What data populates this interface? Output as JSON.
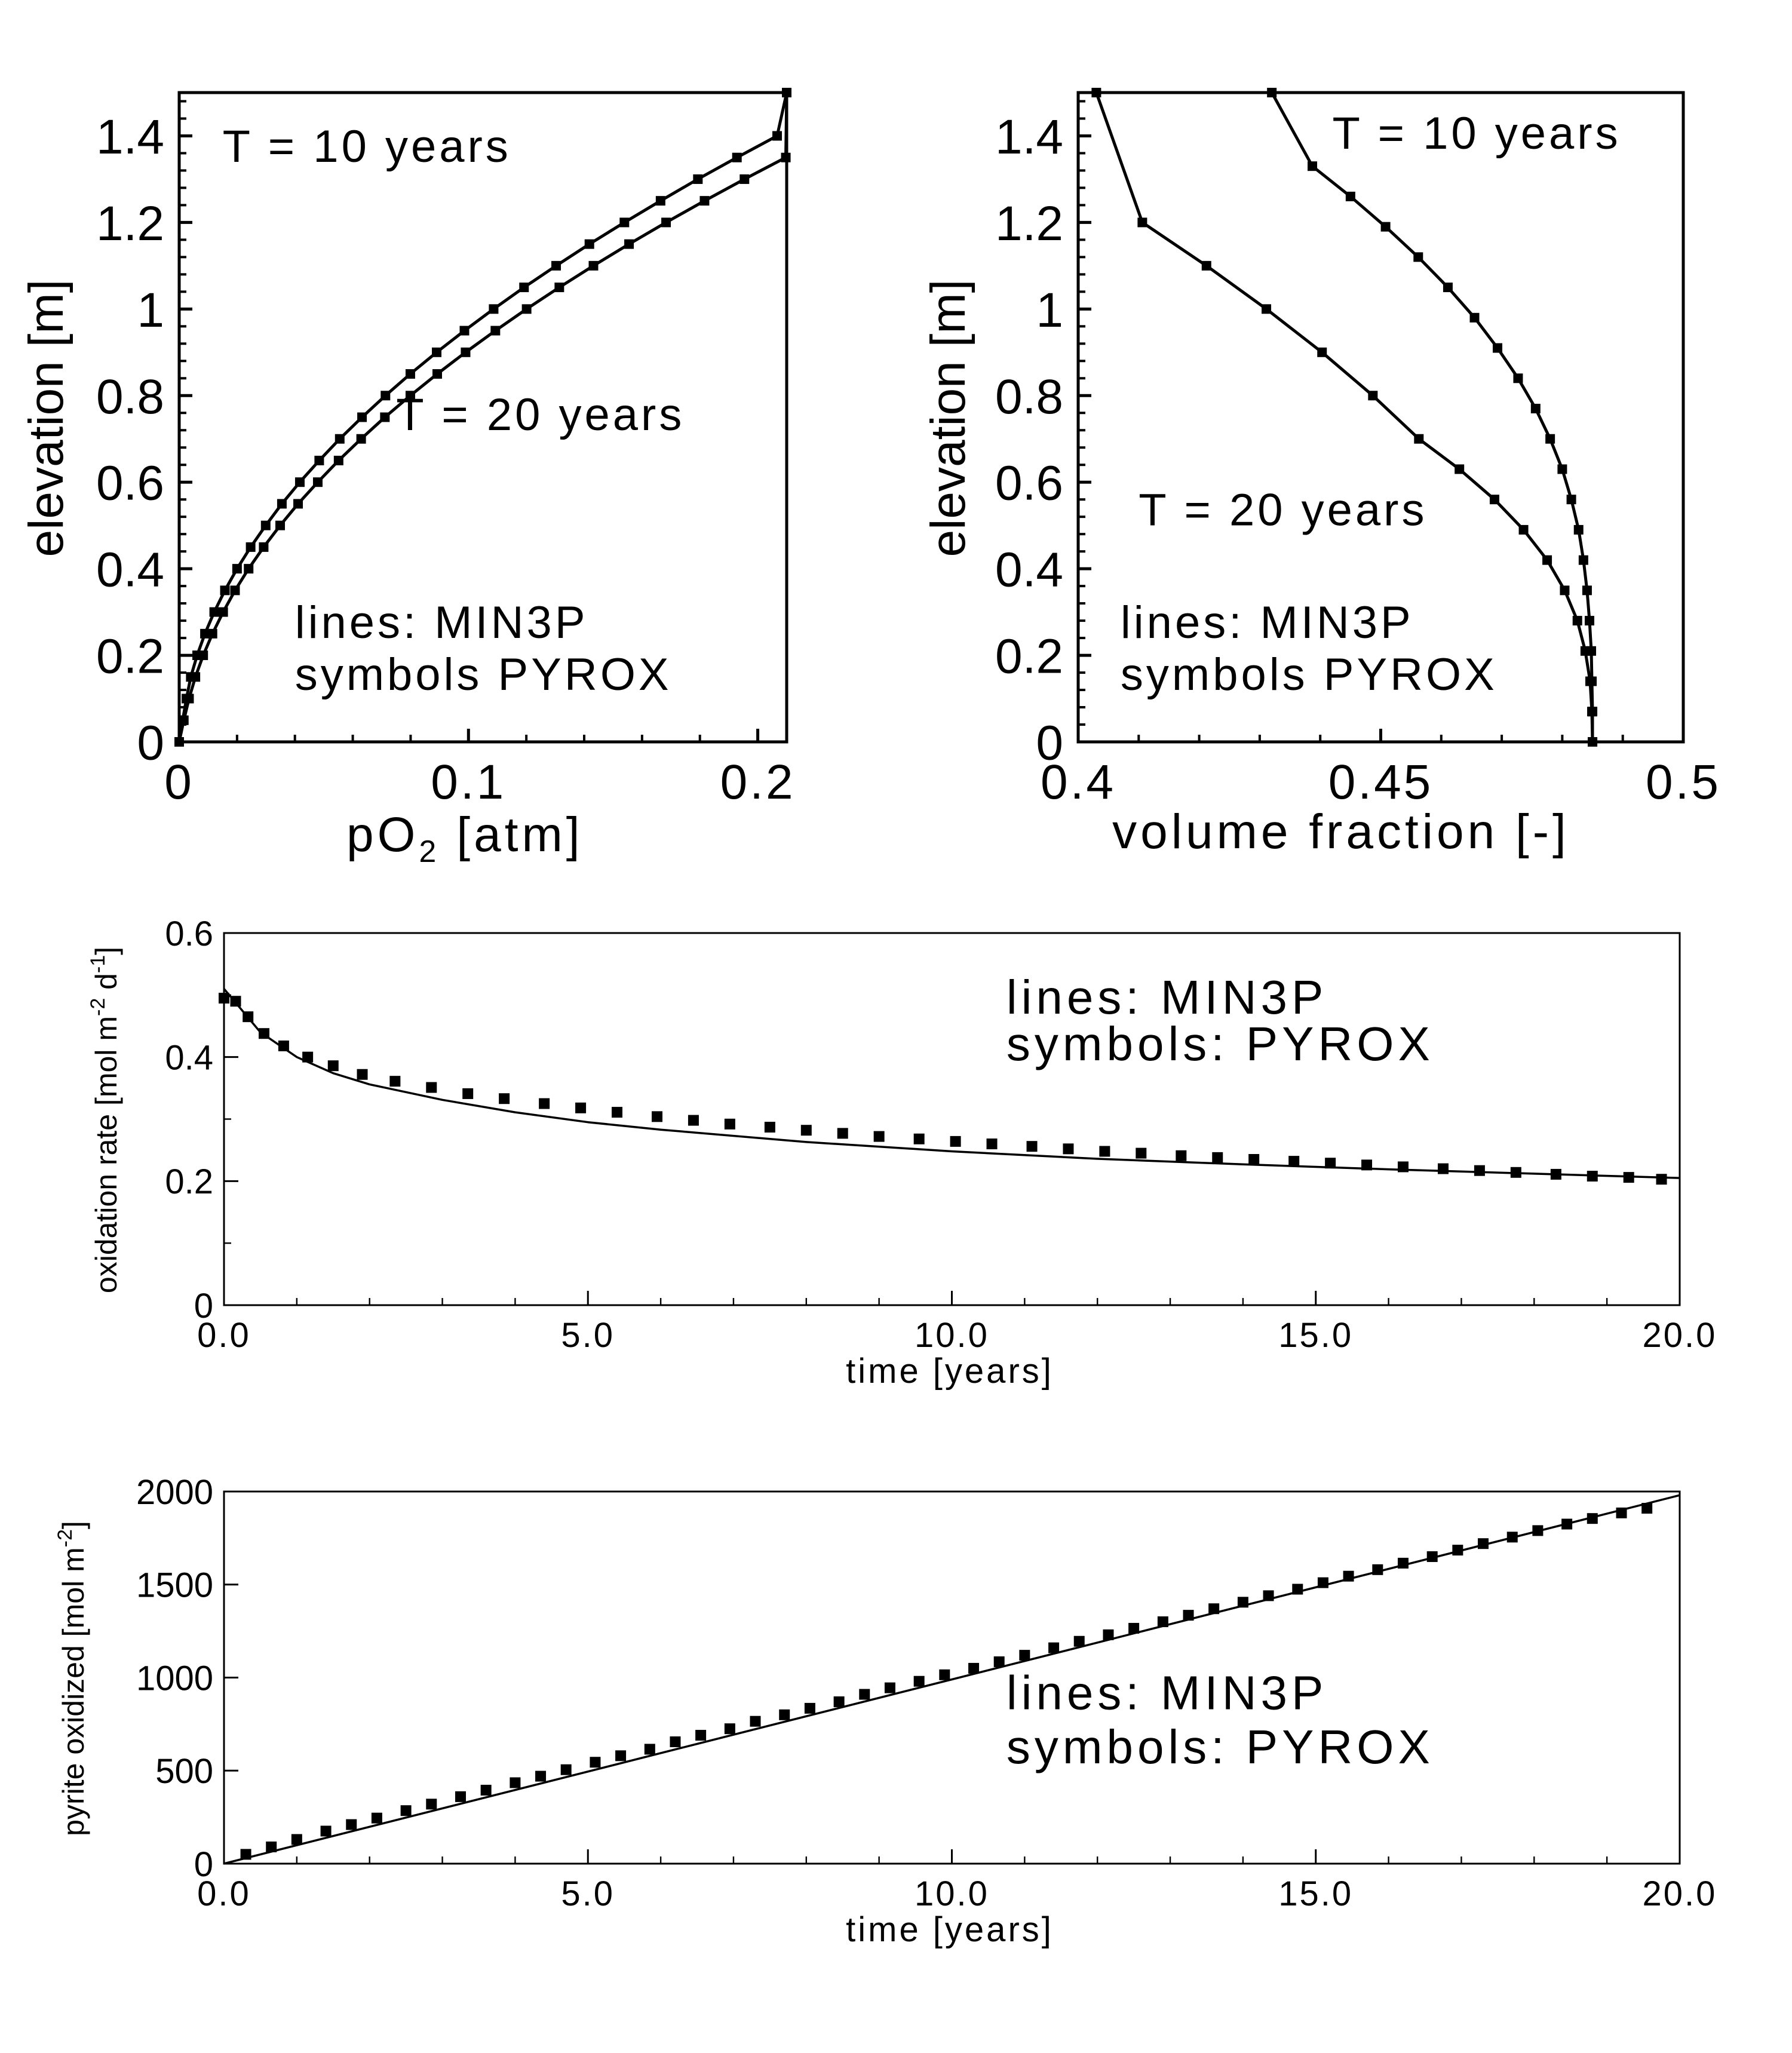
{
  "colors": {
    "background": "#ffffff",
    "ink": "#000000"
  },
  "chart_data": [
    {
      "type": "scatter",
      "xlabel": "pO",
      "xlabel_sub": "2",
      "xlabel_unit": "[atm]",
      "ylabel": "elevation [m]",
      "xlim": [
        0,
        0.21
      ],
      "ylim": [
        0,
        1.5
      ],
      "xticks": [
        {
          "v": 0,
          "t": "0"
        },
        {
          "v": 0.1,
          "t": "0.1"
        },
        {
          "v": 0.2,
          "t": "0.2"
        }
      ],
      "yticks": [
        {
          "v": 0,
          "t": "0"
        },
        {
          "v": 0.2,
          "t": "0.2"
        },
        {
          "v": 0.4,
          "t": "0.4"
        },
        {
          "v": 0.6,
          "t": "0.6"
        },
        {
          "v": 0.8,
          "t": "0.8"
        },
        {
          "v": 1,
          "t": "1"
        },
        {
          "v": 1.2,
          "t": "1.2"
        },
        {
          "v": 1.4,
          "t": "1.4"
        }
      ],
      "annotations": [
        {
          "text": "T = 10 years",
          "x": 0.015,
          "y": 1.34
        },
        {
          "text": "T = 20 years",
          "x": 0.075,
          "y": 0.72
        },
        {
          "text": "lines: MIN3P",
          "x": 0.04,
          "y": 0.24
        },
        {
          "text": "symbols PYROX",
          "x": 0.04,
          "y": 0.12
        }
      ],
      "series": [
        {
          "label": "T = 10 years",
          "x": [
            0.0,
            0.0012,
            0.0025,
            0.004,
            0.0062,
            0.0089,
            0.0121,
            0.0158,
            0.02,
            0.0247,
            0.0299,
            0.0355,
            0.0417,
            0.0484,
            0.0555,
            0.0632,
            0.0713,
            0.0799,
            0.089,
            0.0986,
            0.1087,
            0.1192,
            0.1303,
            0.1418,
            0.1539,
            0.1664,
            0.1793,
            0.1928,
            0.2067,
            0.21
          ],
          "y": [
            0.0,
            0.05,
            0.1,
            0.15,
            0.2,
            0.25,
            0.3,
            0.35,
            0.4,
            0.45,
            0.5,
            0.55,
            0.6,
            0.65,
            0.7,
            0.75,
            0.8,
            0.85,
            0.9,
            0.95,
            1.0,
            1.05,
            1.1,
            1.15,
            1.2,
            1.25,
            1.3,
            1.35,
            1.4,
            1.5
          ]
        },
        {
          "label": "T = 20 years",
          "x": [
            0.0,
            0.0016,
            0.0034,
            0.0056,
            0.0083,
            0.0115,
            0.0152,
            0.0193,
            0.024,
            0.0292,
            0.0349,
            0.0411,
            0.0479,
            0.0551,
            0.0629,
            0.0711,
            0.0799,
            0.0892,
            0.099,
            0.1093,
            0.1201,
            0.1314,
            0.1432,
            0.1555,
            0.1683,
            0.1816,
            0.1954,
            0.2097,
            0.21
          ],
          "y": [
            0.0,
            0.05,
            0.1,
            0.15,
            0.2,
            0.25,
            0.3,
            0.35,
            0.4,
            0.45,
            0.5,
            0.55,
            0.6,
            0.65,
            0.7,
            0.75,
            0.8,
            0.85,
            0.9,
            0.95,
            1.0,
            1.05,
            1.1,
            1.15,
            1.2,
            1.25,
            1.3,
            1.35,
            1.5
          ]
        }
      ]
    },
    {
      "type": "scatter",
      "xlabel": "volume fraction [-]",
      "ylabel": "elevation [m]",
      "xlim": [
        0.4,
        0.5
      ],
      "ylim": [
        0,
        1.5
      ],
      "xticks": [
        {
          "v": 0.4,
          "t": "0.4"
        },
        {
          "v": 0.45,
          "t": "0.45"
        },
        {
          "v": 0.5,
          "t": "0.5"
        }
      ],
      "yticks": [
        {
          "v": 0,
          "t": "0"
        },
        {
          "v": 0.2,
          "t": "0.2"
        },
        {
          "v": 0.4,
          "t": "0.4"
        },
        {
          "v": 0.6,
          "t": "0.6"
        },
        {
          "v": 0.8,
          "t": "0.8"
        },
        {
          "v": 1,
          "t": "1"
        },
        {
          "v": 1.2,
          "t": "1.2"
        },
        {
          "v": 1.4,
          "t": "1.4"
        }
      ],
      "annotations": [
        {
          "text": "T = 10 years",
          "x": 0.442,
          "y": 1.37
        },
        {
          "text": "T = 20 years",
          "x": 0.41,
          "y": 0.5
        },
        {
          "text": "lines: MIN3P",
          "x": 0.407,
          "y": 0.24
        },
        {
          "text": "symbols PYROX",
          "x": 0.407,
          "y": 0.12
        }
      ],
      "series": [
        {
          "label": "T = 10 years",
          "x": [
            0.485,
            0.485,
            0.4849,
            0.4848,
            0.4845,
            0.4841,
            0.4835,
            0.4827,
            0.4815,
            0.48,
            0.478,
            0.4756,
            0.4727,
            0.4693,
            0.4655,
            0.4611,
            0.4562,
            0.4508,
            0.445,
            0.4387,
            0.432
          ],
          "y": [
            0.0,
            0.07,
            0.14,
            0.21,
            0.28,
            0.35,
            0.42,
            0.49,
            0.56,
            0.63,
            0.7,
            0.77,
            0.84,
            0.91,
            0.98,
            1.05,
            1.12,
            1.19,
            1.26,
            1.33,
            1.5
          ]
        },
        {
          "label": "T = 20 years",
          "x": [
            0.485,
            0.4849,
            0.4846,
            0.4838,
            0.4825,
            0.4804,
            0.4775,
            0.4736,
            0.4688,
            0.463,
            0.4563,
            0.4487,
            0.4403,
            0.4311,
            0.4212,
            0.4106,
            0.403
          ],
          "y": [
            0.0,
            0.07,
            0.14,
            0.21,
            0.28,
            0.35,
            0.42,
            0.49,
            0.56,
            0.63,
            0.7,
            0.8,
            0.9,
            1.0,
            1.1,
            1.2,
            1.5
          ]
        }
      ]
    },
    {
      "type": "scatter",
      "xlabel": "time [years]",
      "ylabel": "oxidation rate [mol m",
      "ylabel_sup1": "-2",
      "ylabel_mid": " d",
      "ylabel_sup2": "-1",
      "ylabel_end": "]",
      "xlim": [
        0,
        20
      ],
      "ylim": [
        0,
        0.6
      ],
      "xticks": [
        {
          "v": 0,
          "t": "0.0"
        },
        {
          "v": 5,
          "t": "5.0"
        },
        {
          "v": 10,
          "t": "10.0"
        },
        {
          "v": 15,
          "t": "15.0"
        },
        {
          "v": 20,
          "t": "20.0"
        }
      ],
      "yticks": [
        {
          "v": 0,
          "t": "0"
        },
        {
          "v": 0.2,
          "t": "0.2"
        },
        {
          "v": 0.4,
          "t": "0.4"
        },
        {
          "v": 0.6,
          "t": "0.6"
        }
      ],
      "annotations": [
        {
          "text": "lines: MIN3P",
          "x": 10.75,
          "y": 0.47
        },
        {
          "text": "symbols: PYROX",
          "x": 10.75,
          "y": 0.395
        }
      ],
      "series": [
        {
          "label": "MIN3P",
          "x": [
            0.0,
            0.25,
            0.5,
            1.0,
            1.5,
            2.0,
            3.0,
            4.0,
            5.0,
            6.0,
            8.0,
            10.0,
            12.0,
            14.0,
            16.0,
            18.0,
            20.0
          ],
          "y": [
            0.51,
            0.475,
            0.44,
            0.4,
            0.374,
            0.356,
            0.331,
            0.311,
            0.295,
            0.283,
            0.263,
            0.248,
            0.236,
            0.227,
            0.219,
            0.212,
            0.205
          ]
        },
        {
          "label": "PYROX",
          "x": [
            0.0,
            0.16,
            0.33,
            0.55,
            0.82,
            1.15,
            1.5,
            1.9,
            2.35,
            2.85,
            3.35,
            3.85,
            4.4,
            4.9,
            5.4,
            5.95,
            6.45,
            6.95,
            7.5,
            8.0,
            8.5,
            9.0,
            9.55,
            10.05,
            10.55,
            11.1,
            11.6,
            12.1,
            12.6,
            13.15,
            13.65,
            14.15,
            14.7,
            15.2,
            15.7,
            16.2,
            16.75,
            17.25,
            17.75,
            18.3,
            18.8,
            19.3,
            19.75
          ],
          "y": [
            0.495,
            0.49,
            0.465,
            0.438,
            0.418,
            0.4,
            0.386,
            0.372,
            0.361,
            0.351,
            0.341,
            0.333,
            0.325,
            0.318,
            0.311,
            0.304,
            0.298,
            0.292,
            0.287,
            0.282,
            0.277,
            0.272,
            0.268,
            0.264,
            0.26,
            0.256,
            0.252,
            0.248,
            0.245,
            0.241,
            0.238,
            0.235,
            0.232,
            0.229,
            0.226,
            0.223,
            0.22,
            0.217,
            0.214,
            0.211,
            0.208,
            0.206,
            0.203
          ]
        }
      ]
    },
    {
      "type": "scatter",
      "xlabel": "time [years]",
      "ylabel": "pyrite oxidized [mol m",
      "ylabel_sup1": "-2",
      "ylabel_end": "]",
      "xlim": [
        0,
        20
      ],
      "ylim": [
        0,
        2000
      ],
      "xticks": [
        {
          "v": 0,
          "t": "0.0"
        },
        {
          "v": 5,
          "t": "5.0"
        },
        {
          "v": 10,
          "t": "10.0"
        },
        {
          "v": 15,
          "t": "15.0"
        },
        {
          "v": 20,
          "t": "20.0"
        }
      ],
      "yticks": [
        {
          "v": 0,
          "t": "0"
        },
        {
          "v": 500,
          "t": "500"
        },
        {
          "v": 1000,
          "t": "1000"
        },
        {
          "v": 1500,
          "t": "1500"
        },
        {
          "v": 2000,
          "t": "2000"
        }
      ],
      "annotations": [
        {
          "text": "lines: MIN3P",
          "x": 10.75,
          "y": 830
        },
        {
          "text": "symbols: PYROX",
          "x": 10.75,
          "y": 540
        }
      ],
      "series": [
        {
          "label": "MIN3P",
          "x": [
            0.0,
            20.0
          ],
          "y": [
            0.0,
            1980.0
          ]
        },
        {
          "label": "PYROX",
          "x": [
            0.3,
            0.65,
            1.0,
            1.4,
            1.75,
            2.1,
            2.5,
            2.85,
            3.25,
            3.6,
            4.0,
            4.35,
            4.7,
            5.1,
            5.45,
            5.85,
            6.2,
            6.55,
            6.95,
            7.3,
            7.7,
            8.05,
            8.45,
            8.8,
            9.15,
            9.55,
            9.9,
            10.3,
            10.65,
            11.0,
            11.4,
            11.75,
            12.15,
            12.5,
            12.9,
            13.25,
            13.6,
            14.0,
            14.35,
            14.75,
            15.1,
            15.45,
            15.85,
            16.2,
            16.6,
            16.95,
            17.3,
            17.7,
            18.05,
            18.45,
            18.8,
            19.2,
            19.55
          ],
          "y": [
            50,
            90,
            130,
            175,
            210,
            245,
            285,
            320,
            360,
            395,
            435,
            470,
            505,
            545,
            580,
            615,
            655,
            690,
            725,
            765,
            800,
            835,
            870,
            910,
            945,
            980,
            1015,
            1050,
            1085,
            1120,
            1160,
            1195,
            1230,
            1265,
            1300,
            1335,
            1370,
            1405,
            1440,
            1475,
            1510,
            1545,
            1580,
            1615,
            1650,
            1685,
            1720,
            1755,
            1790,
            1825,
            1855,
            1885,
            1910
          ]
        }
      ]
    }
  ]
}
